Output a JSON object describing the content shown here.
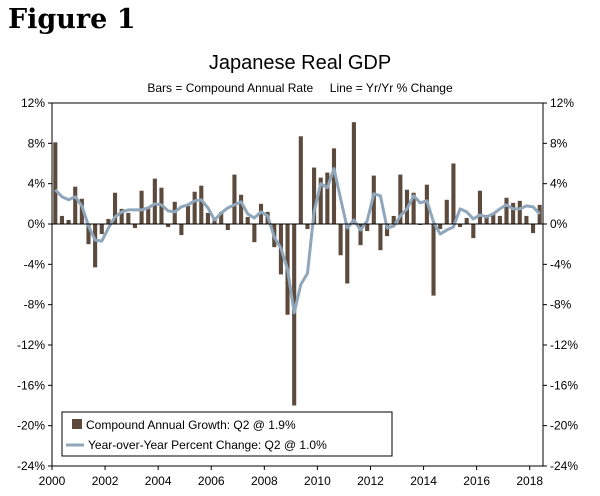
{
  "figure_label": "Figure 1",
  "chart_data": {
    "type": "bar",
    "title": "Japanese Real GDP",
    "subtitle": "Bars = Compound Annual Rate     Line = Yr/Yr % Change",
    "ylim": [
      -24,
      12
    ],
    "y_ticks": [
      "12%",
      "8%",
      "4%",
      "0%",
      "-4%",
      "-8%",
      "-12%",
      "-16%",
      "-20%",
      "-24%"
    ],
    "y_tick_values": [
      12,
      8,
      4,
      0,
      -4,
      -8,
      -12,
      -16,
      -20,
      -24
    ],
    "x_ticks": [
      "2000",
      "2002",
      "2004",
      "2006",
      "2008",
      "2010",
      "2012",
      "2014",
      "2016",
      "2018"
    ],
    "x_start_year": 2000,
    "grid": false,
    "legend_position": "bottom-left",
    "colors": {
      "bars": "#5c4a3d",
      "line": "#8fa6bb"
    },
    "series": [
      {
        "name": "Compound Annual Growth: Q2 @ 1.9%",
        "type": "bar",
        "values": [
          8.1,
          0.8,
          0.4,
          3.7,
          2.5,
          -2.0,
          -4.3,
          -1.0,
          0.5,
          3.1,
          1.5,
          1.1,
          -0.4,
          3.3,
          1.6,
          4.5,
          3.6,
          -0.3,
          2.2,
          -1.1,
          1.8,
          3.2,
          3.8,
          1.1,
          0.4,
          1.2,
          -0.6,
          4.9,
          2.9,
          0.7,
          -1.8,
          2.0,
          1.2,
          -2.3,
          -5.0,
          -9.0,
          -18.0,
          8.7,
          -0.5,
          5.6,
          4.6,
          5.1,
          7.5,
          -3.1,
          -5.9,
          10.1,
          -2.1,
          -0.7,
          4.8,
          -2.6,
          -1.2,
          0.8,
          4.9,
          3.4,
          3.1,
          -0.1,
          3.9,
          -7.1,
          -0.5,
          2.4,
          6.0,
          -0.3,
          0.6,
          -1.4,
          3.3,
          0.9,
          1.0,
          0.8,
          2.6,
          2.1,
          2.3,
          0.8,
          -0.9,
          1.9
        ]
      },
      {
        "name": "Year-over-Year Percent Change: Q2 @ 1.0%",
        "type": "line",
        "values": [
          3.4,
          2.7,
          2.4,
          2.7,
          1.8,
          -0.2,
          -1.6,
          -1.7,
          -0.4,
          0.7,
          1.2,
          1.4,
          1.4,
          1.4,
          1.6,
          2.0,
          1.9,
          1.3,
          1.2,
          1.7,
          1.9,
          2.3,
          2.4,
          1.6,
          0.4,
          1.1,
          1.6,
          1.9,
          2.2,
          1.0,
          0.6,
          1.2,
          0.8,
          -1.3,
          -2.4,
          -4.5,
          -8.8,
          -6.0,
          -4.9,
          1.2,
          4.0,
          3.6,
          5.5,
          2.5,
          -0.4,
          0.4,
          -0.6,
          0.3,
          3.0,
          2.8,
          -0.4,
          -0.2,
          0.8,
          1.5,
          2.8,
          2.1,
          2.3,
          0.2,
          -1.0,
          -0.6,
          -0.3,
          1.5,
          1.2,
          0.5,
          0.9,
          0.7,
          1.0,
          1.5,
          1.9,
          1.5,
          1.5,
          1.8,
          1.7,
          1.0
        ]
      }
    ]
  }
}
